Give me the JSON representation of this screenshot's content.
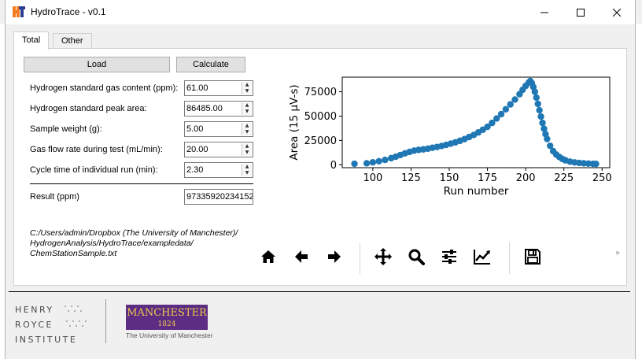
{
  "window": {
    "title": "HydroTrace - v0.1"
  },
  "tabs": [
    {
      "label": "Total"
    },
    {
      "label": "Other"
    }
  ],
  "actions": {
    "load": "Load",
    "calculate": "Calculate"
  },
  "fields": [
    {
      "label": "Hydrogen standard gas content (ppm):",
      "value": "61.00"
    },
    {
      "label": "Hydrogen standard peak area:",
      "value": "86485.00"
    },
    {
      "label": "Sample weight (g):",
      "value": "5.00"
    },
    {
      "label": "Gas flow rate during test (mL/min):",
      "value": "20.00"
    },
    {
      "label": "Cycle time of individual run (min):",
      "value": "2.30"
    }
  ],
  "result": {
    "label": "Result (ppm)",
    "value": "97335920234152"
  },
  "file_path": {
    "line1": "C:/Users/admin/Dropbox (The University of Manchester)/",
    "line2": "HydrogenAnalysis/HydroTrace/exampledata/",
    "line3": "ChemStationSample.txt"
  },
  "toolbar": {
    "icons": [
      "home-icon",
      "back-arrow-icon",
      "forward-arrow-icon",
      "pan-icon",
      "zoom-icon",
      "subplots-icon",
      "edit-axis-icon",
      "save-icon"
    ],
    "more": "»"
  },
  "logos": {
    "henry_line1": "HENRY",
    "henry_line2": "ROYCE",
    "henry_line3": "INSTITUTE",
    "manchester_word": "MANCHESTER",
    "manchester_year": "1824",
    "manchester_sub": "The University of Manchester",
    "manchester_color": "#5c2d82"
  },
  "chart_data": {
    "type": "scatter",
    "xlabel": "Run number",
    "ylabel": "Area (15 µV-s)",
    "xlim": [
      80,
      255
    ],
    "ylim": [
      -3000,
      90000
    ],
    "xticks": [
      100,
      125,
      150,
      175,
      200,
      225,
      250
    ],
    "yticks": [
      0,
      25000,
      50000,
      75000
    ],
    "color": "#1f77b4",
    "series": [
      {
        "x": [
          88,
          96,
          100,
          104,
          108,
          112,
          115,
          118,
          121,
          124,
          127,
          130,
          133,
          136,
          139,
          142,
          145,
          148,
          151,
          154,
          157,
          160,
          163,
          166,
          169,
          172,
          175,
          178,
          181,
          184,
          187,
          190,
          193,
          196,
          198,
          200,
          202,
          203,
          204,
          205,
          206,
          207,
          208,
          209,
          210,
          211,
          212,
          213,
          214,
          216,
          218,
          220,
          222,
          224,
          226,
          229,
          232,
          235,
          238,
          241,
          244,
          246
        ],
        "y": [
          1000,
          1500,
          2500,
          3600,
          5000,
          6800,
          8300,
          10000,
          11700,
          13200,
          14500,
          15300,
          15800,
          16500,
          17500,
          18300,
          19300,
          20400,
          21700,
          23000,
          24600,
          26400,
          28500,
          30600,
          33200,
          36000,
          39000,
          43000,
          47500,
          52000,
          57000,
          62000,
          67000,
          72500,
          77000,
          81000,
          84500,
          86000,
          84000,
          80000,
          75000,
          69000,
          62500,
          56000,
          49500,
          43000,
          37000,
          31500,
          26500,
          19500,
          14000,
          10500,
          8000,
          6000,
          4600,
          3200,
          2400,
          1900,
          1500,
          1200,
          1000,
          900
        ]
      }
    ]
  }
}
